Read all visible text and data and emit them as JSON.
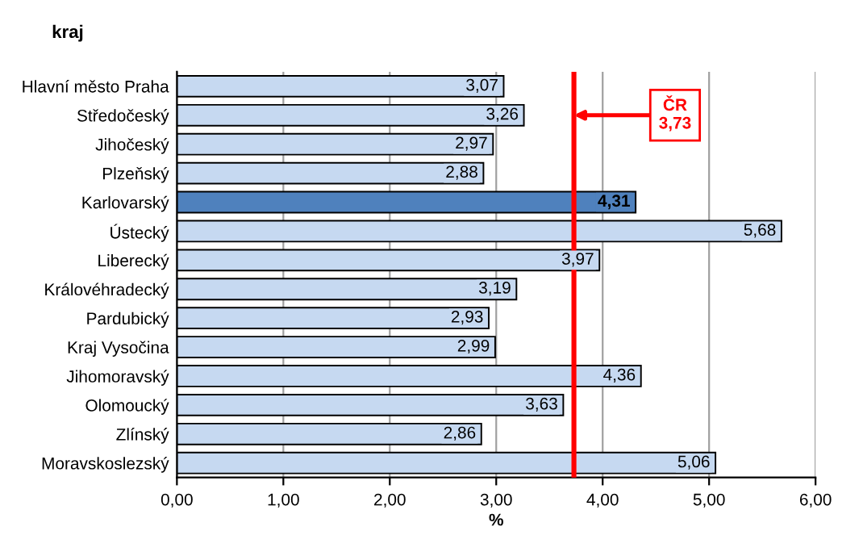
{
  "chart_data": {
    "type": "bar",
    "orientation": "horizontal",
    "title": "kraj",
    "xlabel": "%",
    "categories": [
      "Hlavní město Praha",
      "Středočeský",
      "Jihočeský",
      "Plzeňský",
      "Karlovarský",
      "Ústecký",
      "Liberecký",
      "Královéhradecký",
      "Pardubický",
      "Kraj Vysočina",
      "Jihomoravský",
      "Olomoucký",
      "Zlínský",
      "Moravskoslezský"
    ],
    "values": [
      3.07,
      3.26,
      2.97,
      2.88,
      4.31,
      5.68,
      3.97,
      3.19,
      2.93,
      2.99,
      4.36,
      3.63,
      2.86,
      5.06
    ],
    "value_labels": [
      "3,07",
      "3,26",
      "2,97",
      "2,88",
      "4,31",
      "5,68",
      "3,97",
      "3,19",
      "2,93",
      "2,99",
      "4,36",
      "3,63",
      "2,86",
      "5,06"
    ],
    "colors": [
      "#c6d9f1",
      "#c6d9f1",
      "#c6d9f1",
      "#c6d9f1",
      "#4f81bd",
      "#c6d9f1",
      "#c6d9f1",
      "#c6d9f1",
      "#c6d9f1",
      "#c6d9f1",
      "#c6d9f1",
      "#c6d9f1",
      "#c6d9f1",
      "#c6d9f1"
    ],
    "xlim": [
      0,
      6
    ],
    "xticks": [
      {
        "value": 0,
        "label": "0,00"
      },
      {
        "value": 1,
        "label": "1,00"
      },
      {
        "value": 2,
        "label": "2,00"
      },
      {
        "value": 3,
        "label": "3,00"
      },
      {
        "value": 4,
        "label": "4,00"
      },
      {
        "value": 5,
        "label": "5,00"
      },
      {
        "value": 6,
        "label": "6,00"
      }
    ],
    "grid": "x",
    "legend": false,
    "ref_lines": [
      {
        "axis": "x",
        "value": 3.73,
        "label": "ČR\n3,73",
        "color": "#ff0000"
      }
    ]
  }
}
